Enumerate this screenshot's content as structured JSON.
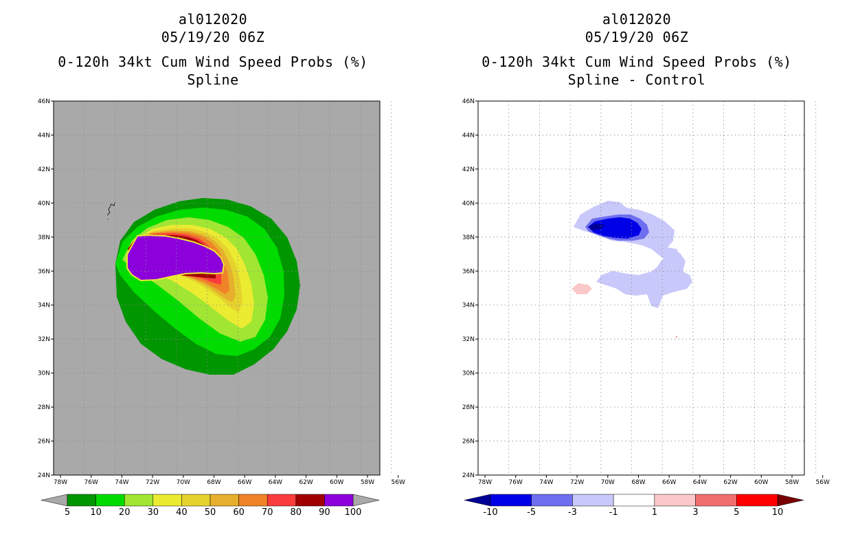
{
  "left_panel": {
    "storm_id": "al012020",
    "datetime": "05/19/20 06Z",
    "product": "0-120h 34kt Cum Wind Speed Probs (%)",
    "method": "Spline",
    "background_color": "#a9a9a9",
    "colorbar": {
      "labels": [
        "5",
        "10",
        "20",
        "30",
        "40",
        "50",
        "60",
        "70",
        "80",
        "90",
        "100"
      ],
      "colors": [
        "#009600",
        "#00dc00",
        "#a0e632",
        "#ebeb32",
        "#e6d22d",
        "#e6af2d",
        "#f08228",
        "#fa3c3c",
        "#a00000",
        "#8c00dc"
      ],
      "under_color": "#a9a9a9",
      "over_color": "#a9a9a9"
    }
  },
  "right_panel": {
    "storm_id": "al012020",
    "datetime": "05/19/20 06Z",
    "product": "0-120h 34kt Cum Wind Speed Probs (%)",
    "method": "Spline - Control",
    "background_color": "#ffffff",
    "colorbar": {
      "labels": [
        "-10",
        "-5",
        "-3",
        "-1",
        "1",
        "3",
        "5",
        "10"
      ],
      "colors": [
        "#0000e6",
        "#6e6ef0",
        "#c8c8fa",
        "#ffffff",
        "#fac8c8",
        "#f06e6e",
        "#ff0000"
      ],
      "under_color": "#000096",
      "over_color": "#780000"
    }
  },
  "axes": {
    "lat_labels": [
      "46N",
      "44N",
      "42N",
      "40N",
      "38N",
      "36N",
      "34N",
      "32N",
      "30N",
      "28N",
      "26N",
      "24N"
    ],
    "lon_labels": [
      "78W",
      "76W",
      "74W",
      "72W",
      "70W",
      "68W",
      "66W",
      "64W",
      "62W",
      "60W",
      "58W",
      "56W"
    ]
  }
}
